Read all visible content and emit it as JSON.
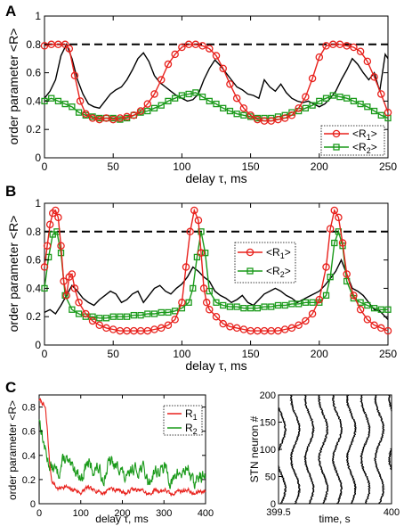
{
  "panels": {
    "A": "A",
    "B": "B",
    "C": "C"
  },
  "colors": {
    "R1": "#e8211c",
    "R2": "#1a9a1a",
    "R": "#000000",
    "dashed": "#000000"
  },
  "chart_data": [
    {
      "panel": "A",
      "type": "line",
      "xlabel": "delay τ, ms",
      "ylabel": "order parameter <R>",
      "xlim": [
        0,
        250
      ],
      "ylim": [
        0,
        1
      ],
      "xticks": [
        "0",
        "50",
        "100",
        "150",
        "200",
        "250"
      ],
      "yticks": [
        "0",
        "0.2",
        "0.4",
        "0.6",
        "0.8",
        "1"
      ],
      "hline": 0.8,
      "legend": [
        "<R1>",
        "<R2>"
      ],
      "legend_position": "bottom-right",
      "series": [
        {
          "name": "<R1>",
          "marker": "circle",
          "x": [
            0,
            5,
            10,
            15,
            18,
            22,
            26,
            30,
            35,
            40,
            45,
            50,
            55,
            60,
            65,
            70,
            75,
            80,
            85,
            90,
            95,
            100,
            105,
            110,
            115,
            120,
            125,
            130,
            135,
            140,
            145,
            150,
            155,
            160,
            165,
            170,
            175,
            180,
            185,
            190,
            195,
            200,
            205,
            210,
            215,
            220,
            225,
            230,
            235,
            240,
            245,
            250
          ],
          "y": [
            0.79,
            0.8,
            0.8,
            0.8,
            0.77,
            0.58,
            0.4,
            0.31,
            0.28,
            0.27,
            0.28,
            0.27,
            0.28,
            0.29,
            0.3,
            0.33,
            0.38,
            0.45,
            0.55,
            0.66,
            0.73,
            0.78,
            0.8,
            0.8,
            0.79,
            0.77,
            0.72,
            0.63,
            0.52,
            0.42,
            0.35,
            0.3,
            0.27,
            0.26,
            0.26,
            0.27,
            0.28,
            0.3,
            0.35,
            0.43,
            0.56,
            0.71,
            0.79,
            0.8,
            0.8,
            0.79,
            0.78,
            0.75,
            0.68,
            0.57,
            0.45,
            0.32
          ]
        },
        {
          "name": "<R2>",
          "marker": "square",
          "x": [
            0,
            5,
            10,
            15,
            20,
            25,
            30,
            35,
            40,
            45,
            50,
            55,
            60,
            65,
            70,
            75,
            80,
            85,
            90,
            95,
            100,
            105,
            110,
            115,
            120,
            125,
            130,
            135,
            140,
            145,
            150,
            155,
            160,
            165,
            170,
            175,
            180,
            185,
            190,
            195,
            200,
            205,
            210,
            215,
            220,
            225,
            230,
            235,
            240,
            245,
            250
          ],
          "y": [
            0.4,
            0.42,
            0.4,
            0.38,
            0.36,
            0.32,
            0.3,
            0.29,
            0.28,
            0.28,
            0.28,
            0.27,
            0.28,
            0.3,
            0.32,
            0.33,
            0.35,
            0.37,
            0.4,
            0.42,
            0.44,
            0.45,
            0.46,
            0.43,
            0.4,
            0.38,
            0.35,
            0.33,
            0.31,
            0.3,
            0.29,
            0.28,
            0.28,
            0.28,
            0.29,
            0.3,
            0.32,
            0.33,
            0.35,
            0.37,
            0.4,
            0.42,
            0.44,
            0.43,
            0.42,
            0.4,
            0.38,
            0.36,
            0.33,
            0.3,
            0.28
          ]
        },
        {
          "name": "",
          "marker": "none",
          "x": [
            0,
            4,
            8,
            12,
            16,
            20,
            24,
            28,
            32,
            36,
            40,
            44,
            48,
            52,
            56,
            60,
            64,
            68,
            72,
            76,
            80,
            84,
            88,
            92,
            96,
            100,
            104,
            108,
            112,
            116,
            120,
            124,
            128,
            132,
            136,
            140,
            144,
            148,
            152,
            156,
            160,
            164,
            168,
            172,
            176,
            180,
            184,
            188,
            192,
            196,
            200,
            204,
            208,
            212,
            216,
            220,
            224,
            228,
            232,
            236,
            240,
            244,
            248,
            250
          ],
          "y": [
            0.42,
            0.47,
            0.55,
            0.72,
            0.8,
            0.7,
            0.55,
            0.45,
            0.38,
            0.36,
            0.35,
            0.4,
            0.45,
            0.48,
            0.5,
            0.55,
            0.62,
            0.7,
            0.74,
            0.68,
            0.58,
            0.53,
            0.5,
            0.47,
            0.44,
            0.42,
            0.4,
            0.41,
            0.45,
            0.55,
            0.63,
            0.69,
            0.65,
            0.6,
            0.55,
            0.5,
            0.48,
            0.45,
            0.44,
            0.42,
            0.55,
            0.5,
            0.47,
            0.52,
            0.46,
            0.42,
            0.4,
            0.39,
            0.4,
            0.38,
            0.36,
            0.38,
            0.42,
            0.47,
            0.55,
            0.62,
            0.7,
            0.66,
            0.6,
            0.55,
            0.6,
            0.47,
            0.73,
            0.7
          ]
        }
      ]
    },
    {
      "panel": "B",
      "type": "line",
      "xlabel": "delay τ, ms",
      "ylabel": "order parameter <R>",
      "xlim": [
        0,
        250
      ],
      "ylim": [
        0,
        1
      ],
      "xticks": [
        "0",
        "50",
        "100",
        "150",
        "200",
        "250"
      ],
      "yticks": [
        "0",
        "0.2",
        "0.4",
        "0.6",
        "0.8",
        "1"
      ],
      "hline": 0.8,
      "legend": [
        "<R1>",
        "<R2>"
      ],
      "legend_position": "top-right",
      "series": [
        {
          "name": "<R1>",
          "marker": "circle",
          "x": [
            0,
            2,
            4,
            6,
            8,
            10,
            12,
            14,
            16,
            18,
            20,
            22,
            25,
            30,
            35,
            40,
            45,
            50,
            55,
            60,
            65,
            70,
            75,
            80,
            85,
            90,
            95,
            100,
            103,
            106,
            109,
            112,
            114,
            116,
            118,
            120,
            125,
            130,
            135,
            140,
            145,
            150,
            155,
            160,
            165,
            170,
            175,
            180,
            185,
            190,
            195,
            200,
            205,
            208,
            211,
            214,
            217,
            220,
            225,
            230,
            235,
            240,
            245,
            250
          ],
          "y": [
            0.55,
            0.7,
            0.85,
            0.93,
            0.95,
            0.9,
            0.7,
            0.45,
            0.35,
            0.48,
            0.5,
            0.4,
            0.3,
            0.22,
            0.17,
            0.14,
            0.12,
            0.11,
            0.1,
            0.1,
            0.1,
            0.1,
            0.1,
            0.11,
            0.12,
            0.14,
            0.18,
            0.3,
            0.55,
            0.8,
            0.95,
            0.88,
            0.65,
            0.4,
            0.3,
            0.25,
            0.2,
            0.15,
            0.13,
            0.12,
            0.11,
            0.1,
            0.1,
            0.1,
            0.1,
            0.1,
            0.11,
            0.12,
            0.14,
            0.17,
            0.22,
            0.32,
            0.55,
            0.82,
            0.95,
            0.9,
            0.72,
            0.5,
            0.35,
            0.25,
            0.18,
            0.14,
            0.12,
            0.1
          ]
        },
        {
          "name": "<R2>",
          "marker": "square",
          "x": [
            0,
            3,
            6,
            9,
            12,
            15,
            20,
            25,
            30,
            35,
            40,
            45,
            50,
            55,
            60,
            65,
            70,
            75,
            80,
            85,
            90,
            95,
            100,
            105,
            108,
            111,
            114,
            117,
            120,
            125,
            130,
            135,
            140,
            145,
            150,
            155,
            160,
            165,
            170,
            175,
            180,
            185,
            190,
            195,
            200,
            205,
            208,
            211,
            214,
            217,
            220,
            225,
            230,
            235,
            240,
            245,
            250
          ],
          "y": [
            0.4,
            0.62,
            0.78,
            0.8,
            0.65,
            0.35,
            0.25,
            0.22,
            0.2,
            0.2,
            0.19,
            0.19,
            0.2,
            0.2,
            0.2,
            0.21,
            0.21,
            0.22,
            0.22,
            0.23,
            0.23,
            0.24,
            0.26,
            0.3,
            0.4,
            0.62,
            0.8,
            0.65,
            0.38,
            0.3,
            0.28,
            0.27,
            0.27,
            0.26,
            0.26,
            0.26,
            0.27,
            0.27,
            0.28,
            0.28,
            0.29,
            0.29,
            0.3,
            0.3,
            0.3,
            0.35,
            0.48,
            0.72,
            0.8,
            0.7,
            0.45,
            0.33,
            0.3,
            0.28,
            0.26,
            0.25,
            0.25
          ]
        },
        {
          "name": "",
          "marker": "none",
          "x": [
            0,
            4,
            8,
            12,
            16,
            20,
            24,
            28,
            32,
            36,
            40,
            44,
            48,
            52,
            56,
            60,
            64,
            68,
            72,
            76,
            80,
            84,
            88,
            92,
            96,
            100,
            104,
            108,
            112,
            116,
            120,
            124,
            128,
            132,
            136,
            140,
            144,
            148,
            152,
            156,
            160,
            164,
            168,
            172,
            176,
            180,
            184,
            188,
            192,
            196,
            200,
            204,
            208,
            212,
            216,
            220,
            224,
            228,
            232,
            236,
            240,
            244,
            248,
            250
          ],
          "y": [
            0.23,
            0.25,
            0.22,
            0.28,
            0.35,
            0.42,
            0.38,
            0.33,
            0.3,
            0.28,
            0.32,
            0.35,
            0.38,
            0.36,
            0.3,
            0.32,
            0.36,
            0.38,
            0.3,
            0.35,
            0.4,
            0.42,
            0.38,
            0.36,
            0.4,
            0.43,
            0.48,
            0.55,
            0.52,
            0.48,
            0.45,
            0.38,
            0.35,
            0.33,
            0.3,
            0.32,
            0.35,
            0.3,
            0.28,
            0.32,
            0.36,
            0.38,
            0.4,
            0.38,
            0.35,
            0.33,
            0.3,
            0.32,
            0.34,
            0.36,
            0.38,
            0.42,
            0.47,
            0.52,
            0.6,
            0.5,
            0.4,
            0.38,
            0.35,
            0.3,
            0.25,
            0.24,
            0.2,
            0.18
          ]
        }
      ]
    },
    {
      "panel": "C-left",
      "type": "line",
      "xlabel": "delay τ, ms",
      "ylabel": "order parameter <R>",
      "xlim": [
        0,
        400
      ],
      "ylim": [
        0,
        0.9
      ],
      "xticks": [
        "0",
        "100",
        "200",
        "300",
        "400"
      ],
      "yticks": [
        "0",
        "0.2",
        "0.4",
        "0.6",
        "0.8"
      ],
      "legend": [
        "R1",
        "R2"
      ],
      "legend_position": "top-right",
      "series": [
        {
          "name": "R1",
          "noise_seed": 7,
          "x": [
            0,
            5,
            10,
            15,
            20,
            25,
            30,
            40,
            60,
            80,
            100,
            150,
            200,
            250,
            300,
            350,
            400
          ],
          "y": [
            0.85,
            0.82,
            0.8,
            0.78,
            0.6,
            0.35,
            0.2,
            0.15,
            0.12,
            0.12,
            0.11,
            0.11,
            0.11,
            0.1,
            0.1,
            0.1,
            0.1
          ],
          "noise": 0.04
        },
        {
          "name": "R2",
          "noise_seed": 13,
          "x": [
            0,
            5,
            10,
            20,
            30,
            50,
            75,
            100,
            125,
            150,
            175,
            200,
            225,
            250,
            275,
            300,
            325,
            350,
            375,
            400
          ],
          "y": [
            0.7,
            0.55,
            0.45,
            0.38,
            0.3,
            0.32,
            0.3,
            0.28,
            0.27,
            0.28,
            0.3,
            0.27,
            0.26,
            0.26,
            0.25,
            0.25,
            0.24,
            0.24,
            0.23,
            0.22
          ],
          "noise": 0.12
        }
      ]
    },
    {
      "panel": "C-right",
      "type": "scatter",
      "xlabel": "time, s",
      "ylabel": "STN neuron #",
      "xlim": [
        399.5,
        400
      ],
      "ylim": [
        0,
        200
      ],
      "xticks": [
        "399.5",
        "400"
      ],
      "yticks": [
        "0",
        "50",
        "100",
        "150",
        "200"
      ],
      "raster": {
        "neurons": 200,
        "period_s": 0.062,
        "wave_amplitude_s": 0.018,
        "wave_period_neurons": 110
      }
    }
  ]
}
